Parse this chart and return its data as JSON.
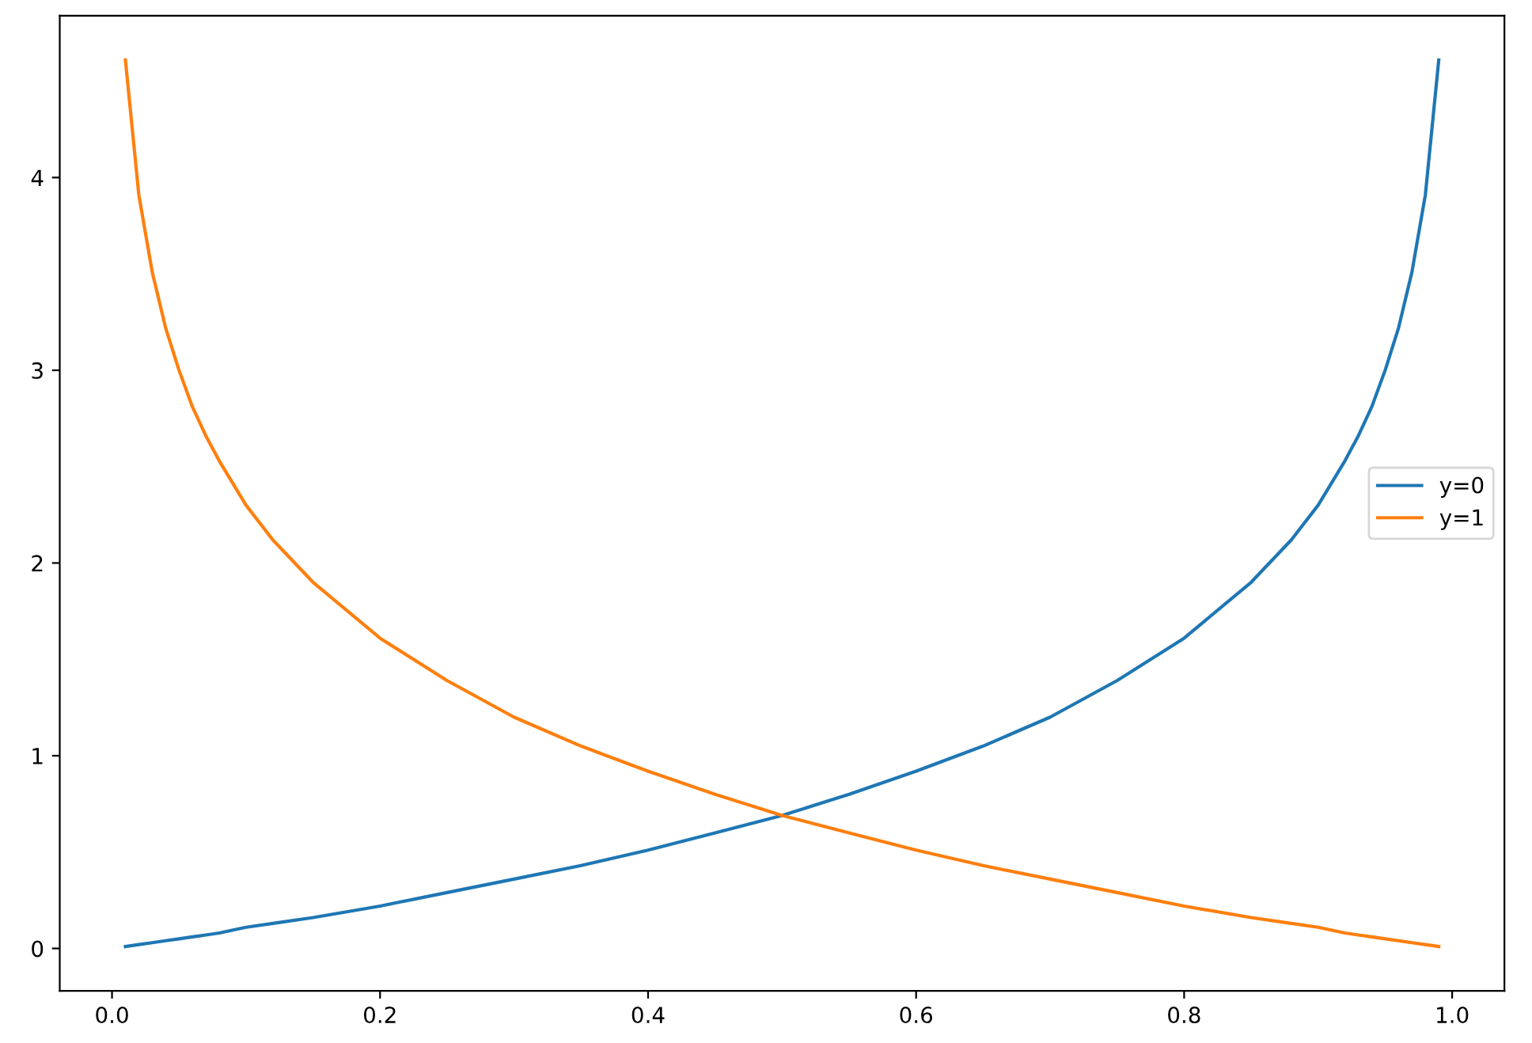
{
  "chart_data": {
    "type": "line",
    "x": [
      0.01,
      0.02,
      0.03,
      0.04,
      0.05,
      0.06,
      0.07,
      0.08,
      0.1,
      0.12,
      0.15,
      0.2,
      0.25,
      0.3,
      0.35,
      0.4,
      0.45,
      0.5,
      0.55,
      0.6,
      0.65,
      0.7,
      0.75,
      0.8,
      0.85,
      0.88,
      0.9,
      0.92,
      0.93,
      0.94,
      0.95,
      0.96,
      0.97,
      0.98,
      0.99
    ],
    "series": [
      {
        "name": "y=0",
        "color": "#1f77b4",
        "values": [
          0.01,
          0.02,
          0.03,
          0.04,
          0.05,
          0.06,
          0.07,
          0.08,
          0.11,
          0.13,
          0.16,
          0.22,
          0.29,
          0.36,
          0.43,
          0.51,
          0.6,
          0.69,
          0.8,
          0.92,
          1.05,
          1.2,
          1.39,
          1.61,
          1.9,
          2.12,
          2.3,
          2.53,
          2.66,
          2.81,
          3.0,
          3.22,
          3.51,
          3.91,
          4.61
        ]
      },
      {
        "name": "y=1",
        "color": "#ff7f0e",
        "values": [
          4.61,
          3.91,
          3.51,
          3.22,
          3.0,
          2.81,
          2.66,
          2.53,
          2.3,
          2.12,
          1.9,
          1.61,
          1.39,
          1.2,
          1.05,
          0.92,
          0.8,
          0.69,
          0.6,
          0.51,
          0.43,
          0.36,
          0.29,
          0.22,
          0.16,
          0.13,
          0.11,
          0.08,
          0.07,
          0.06,
          0.05,
          0.04,
          0.03,
          0.02,
          0.01
        ]
      }
    ],
    "xlim": [
      -0.039,
      1.039
    ],
    "ylim": [
      -0.22,
      4.84
    ],
    "xticks": [
      {
        "value": 0,
        "label": "0.0"
      },
      0.2,
      0.4,
      0.6,
      0.8,
      {
        "value": 1,
        "label": "1.0"
      }
    ],
    "yticks": [
      0,
      1,
      2,
      3,
      4
    ],
    "legend": "center right",
    "grid": false,
    "marker": "none",
    "line_style": "solid"
  }
}
